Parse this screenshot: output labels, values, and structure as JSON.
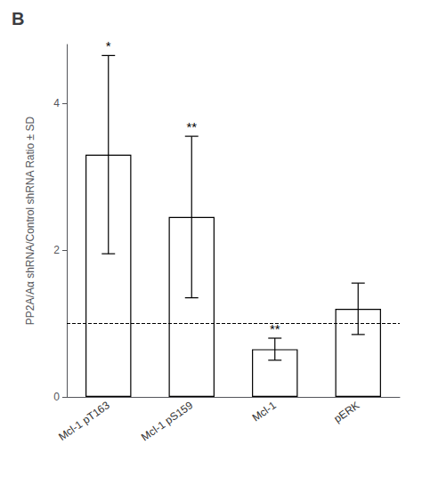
{
  "chart_data": {
    "type": "bar",
    "title": "B",
    "categories": [
      "Mcl-1 pT163",
      "Mcl-1 pS159",
      "Mcl-1",
      "pERK"
    ],
    "values": [
      3.3,
      2.45,
      0.65,
      1.2
    ],
    "errors": [
      1.35,
      1.1,
      0.15,
      0.35
    ],
    "annotations": [
      "*",
      "**",
      "**",
      null
    ],
    "ylabel": "PP2A/Aα shRNA/Control shRNA Ratio ± SD",
    "ylim": [
      0,
      4.8
    ],
    "yticks": [
      0,
      2,
      4
    ],
    "color": "white",
    "edge_color": "black",
    "reference_line": {
      "value": 1.0,
      "line_style": "dashed",
      "color": "black"
    },
    "grid": false
  }
}
